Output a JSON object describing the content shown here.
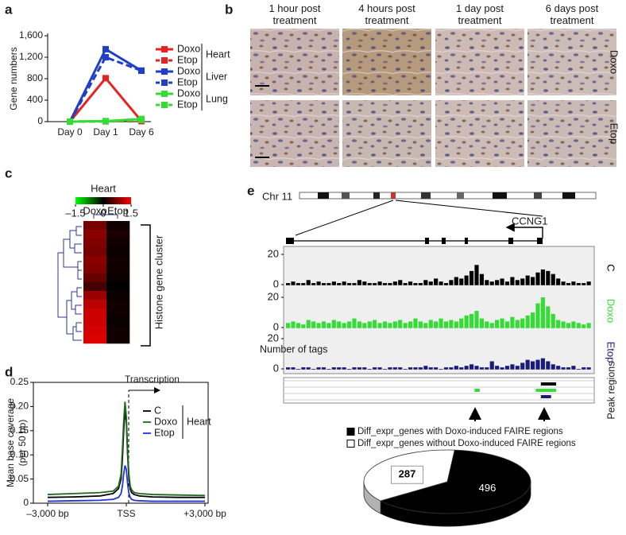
{
  "chart_data": [
    {
      "type": "line",
      "panel": "a",
      "ylabel": "Gene numbers",
      "categories": [
        "Day 0",
        "Day 1",
        "Day 6"
      ],
      "ylim": [
        0,
        1600
      ],
      "yticks": [
        0,
        400,
        800,
        {
          "value": 1200,
          "label": "1,200"
        },
        {
          "value": 1600,
          "label": "1,600"
        }
      ],
      "marker": "square",
      "series": [
        {
          "name": "Doxo",
          "group": "Heart",
          "color": "#e8231f",
          "linestyle": "solid",
          "values": [
            0,
            810,
            10
          ]
        },
        {
          "name": "Etop",
          "group": "Heart",
          "color": "#e8231f",
          "linestyle": "dashed",
          "values": [
            0,
            5,
            10
          ]
        },
        {
          "name": "Doxo",
          "group": "Liver",
          "color": "#1f3fc7",
          "linestyle": "solid",
          "values": [
            0,
            1350,
            950
          ]
        },
        {
          "name": "Etop",
          "group": "Liver",
          "color": "#1f3fc7",
          "linestyle": "dashed",
          "values": [
            0,
            1200,
            950
          ]
        },
        {
          "name": "Doxo",
          "group": "Lung",
          "color": "#33dd33",
          "linestyle": "solid",
          "values": [
            0,
            10,
            50
          ]
        },
        {
          "name": "Etop",
          "group": "Lung",
          "color": "#33dd33",
          "linestyle": "dashed",
          "values": [
            0,
            5,
            30
          ]
        }
      ]
    },
    {
      "type": "heatmap",
      "panel": "c",
      "title": "Heart",
      "clim": [
        -1.5,
        1.5
      ],
      "cticks": [
        {
          "value": -1.5,
          "label": "–1.5"
        },
        0,
        1.5
      ],
      "columns": [
        "Doxo",
        "Etop"
      ],
      "row_label": "Histone gene cluster",
      "values": [
        [
          0.7,
          0.1
        ],
        [
          0.8,
          0.15
        ],
        [
          0.75,
          0.1
        ],
        [
          0.7,
          0.05
        ],
        [
          0.8,
          0.1
        ],
        [
          0.75,
          0.1
        ],
        [
          0.6,
          0.05
        ],
        [
          0.4,
          0.0
        ],
        [
          0.9,
          0.05
        ],
        [
          1.1,
          0.1
        ],
        [
          1.2,
          0.1
        ],
        [
          1.2,
          0.05
        ],
        [
          1.25,
          0.1
        ],
        [
          1.3,
          0.1
        ]
      ]
    },
    {
      "type": "line",
      "panel": "d",
      "ylabel": [
        "Mean base coverage",
        "(per 50 bp)"
      ],
      "x": [
        -3000,
        -2000,
        -1000,
        -500,
        -300,
        -200,
        -150,
        -100,
        -50,
        0,
        50,
        100,
        150,
        200,
        300,
        500,
        1000,
        2000,
        3000
      ],
      "xlim": [
        -3000,
        3000
      ],
      "xticks": [
        {
          "value": -3000,
          "label": "–3,000 bp"
        },
        {
          "value": 0,
          "label": "TSS"
        },
        {
          "value": 3000,
          "label": "+3,000 bp"
        }
      ],
      "ylim": [
        0,
        0.25
      ],
      "yticks": [
        0,
        0.05,
        {
          "value": 0.1,
          "label": "0.10"
        },
        0.15,
        {
          "value": 0.2,
          "label": "0.20"
        },
        0.25
      ],
      "annotation": "Transcription",
      "legend_group": "Heart",
      "series": [
        {
          "name": "C",
          "color": "#000000",
          "values": [
            0.012,
            0.013,
            0.015,
            0.02,
            0.03,
            0.05,
            0.09,
            0.15,
            0.19,
            0.17,
            0.1,
            0.05,
            0.03,
            0.022,
            0.018,
            0.015,
            0.013,
            0.012,
            0.012
          ]
        },
        {
          "name": "Doxo",
          "color": "#1e6b1e",
          "values": [
            0.018,
            0.02,
            0.022,
            0.025,
            0.035,
            0.06,
            0.11,
            0.17,
            0.21,
            0.18,
            0.11,
            0.06,
            0.035,
            0.028,
            0.022,
            0.02,
            0.018,
            0.017,
            0.016
          ]
        },
        {
          "name": "Etop",
          "color": "#2233dd",
          "values": [
            0.004,
            0.005,
            0.006,
            0.008,
            0.012,
            0.02,
            0.035,
            0.06,
            0.078,
            0.07,
            0.04,
            0.02,
            0.012,
            0.008,
            0.006,
            0.005,
            0.004,
            0.004,
            0.004
          ]
        }
      ]
    },
    {
      "type": "track",
      "panel": "e",
      "chromosome": "Chr 11",
      "gene": "CCNG1",
      "ylabel": "Number of tags",
      "ylim": [
        0,
        20
      ],
      "yticks": [
        0,
        20
      ],
      "peak_label": "Peak regions",
      "series": [
        {
          "name": "C",
          "color": "#000000",
          "values": [
            1,
            2,
            1,
            1,
            3,
            1,
            2,
            1,
            1,
            2,
            1,
            2,
            1,
            1,
            3,
            2,
            1,
            1,
            2,
            1,
            1,
            2,
            3,
            1,
            2,
            1,
            1,
            3,
            2,
            4,
            2,
            1,
            3,
            5,
            4,
            6,
            9,
            13,
            7,
            3,
            2,
            3,
            4,
            2,
            5,
            3,
            4,
            6,
            5,
            8,
            10,
            9,
            7,
            4,
            2,
            1,
            2,
            1,
            1,
            2
          ],
          "peaks": [
            [
              50,
              52
            ]
          ]
        },
        {
          "name": "Doxo",
          "color": "#33dd33",
          "values": [
            3,
            4,
            3,
            2,
            5,
            4,
            3,
            4,
            3,
            5,
            4,
            3,
            4,
            6,
            4,
            3,
            4,
            5,
            3,
            4,
            3,
            4,
            5,
            3,
            4,
            6,
            4,
            3,
            5,
            4,
            6,
            4,
            5,
            4,
            6,
            8,
            9,
            11,
            6,
            4,
            3,
            5,
            6,
            4,
            7,
            5,
            6,
            8,
            10,
            16,
            20,
            14,
            9,
            5,
            4,
            3,
            4,
            3,
            2,
            3
          ],
          "peaks": [
            [
              37,
              37
            ],
            [
              49,
              52
            ]
          ]
        },
        {
          "name": "Etop",
          "color": "#1a1a7a",
          "values": [
            1,
            1,
            0,
            1,
            1,
            0,
            1,
            1,
            0,
            1,
            1,
            1,
            0,
            1,
            1,
            1,
            0,
            1,
            1,
            0,
            1,
            1,
            1,
            0,
            1,
            1,
            1,
            2,
            1,
            1,
            0,
            1,
            1,
            2,
            1,
            2,
            3,
            2,
            1,
            1,
            5,
            2,
            1,
            2,
            3,
            2,
            4,
            6,
            5,
            6,
            7,
            5,
            3,
            2,
            1,
            1,
            2,
            0,
            1,
            1
          ],
          "peaks": [
            [
              50,
              51
            ]
          ]
        }
      ]
    },
    {
      "type": "pie",
      "categories": [
        "Diff_expr_genes with Doxo-induced FAIRE regions",
        "Diff_expr_genes without Doxo-induced FAIRE regions"
      ],
      "values": [
        496,
        287
      ],
      "colors": [
        "#000000",
        "#ffffff"
      ]
    }
  ],
  "micrographs": {
    "panel": "b",
    "columns": [
      "1 hour post treatment",
      "4 hours post treatment",
      "1 day post treatment",
      "6 days post treatment"
    ],
    "rows": [
      "Doxo",
      "Etop"
    ]
  }
}
